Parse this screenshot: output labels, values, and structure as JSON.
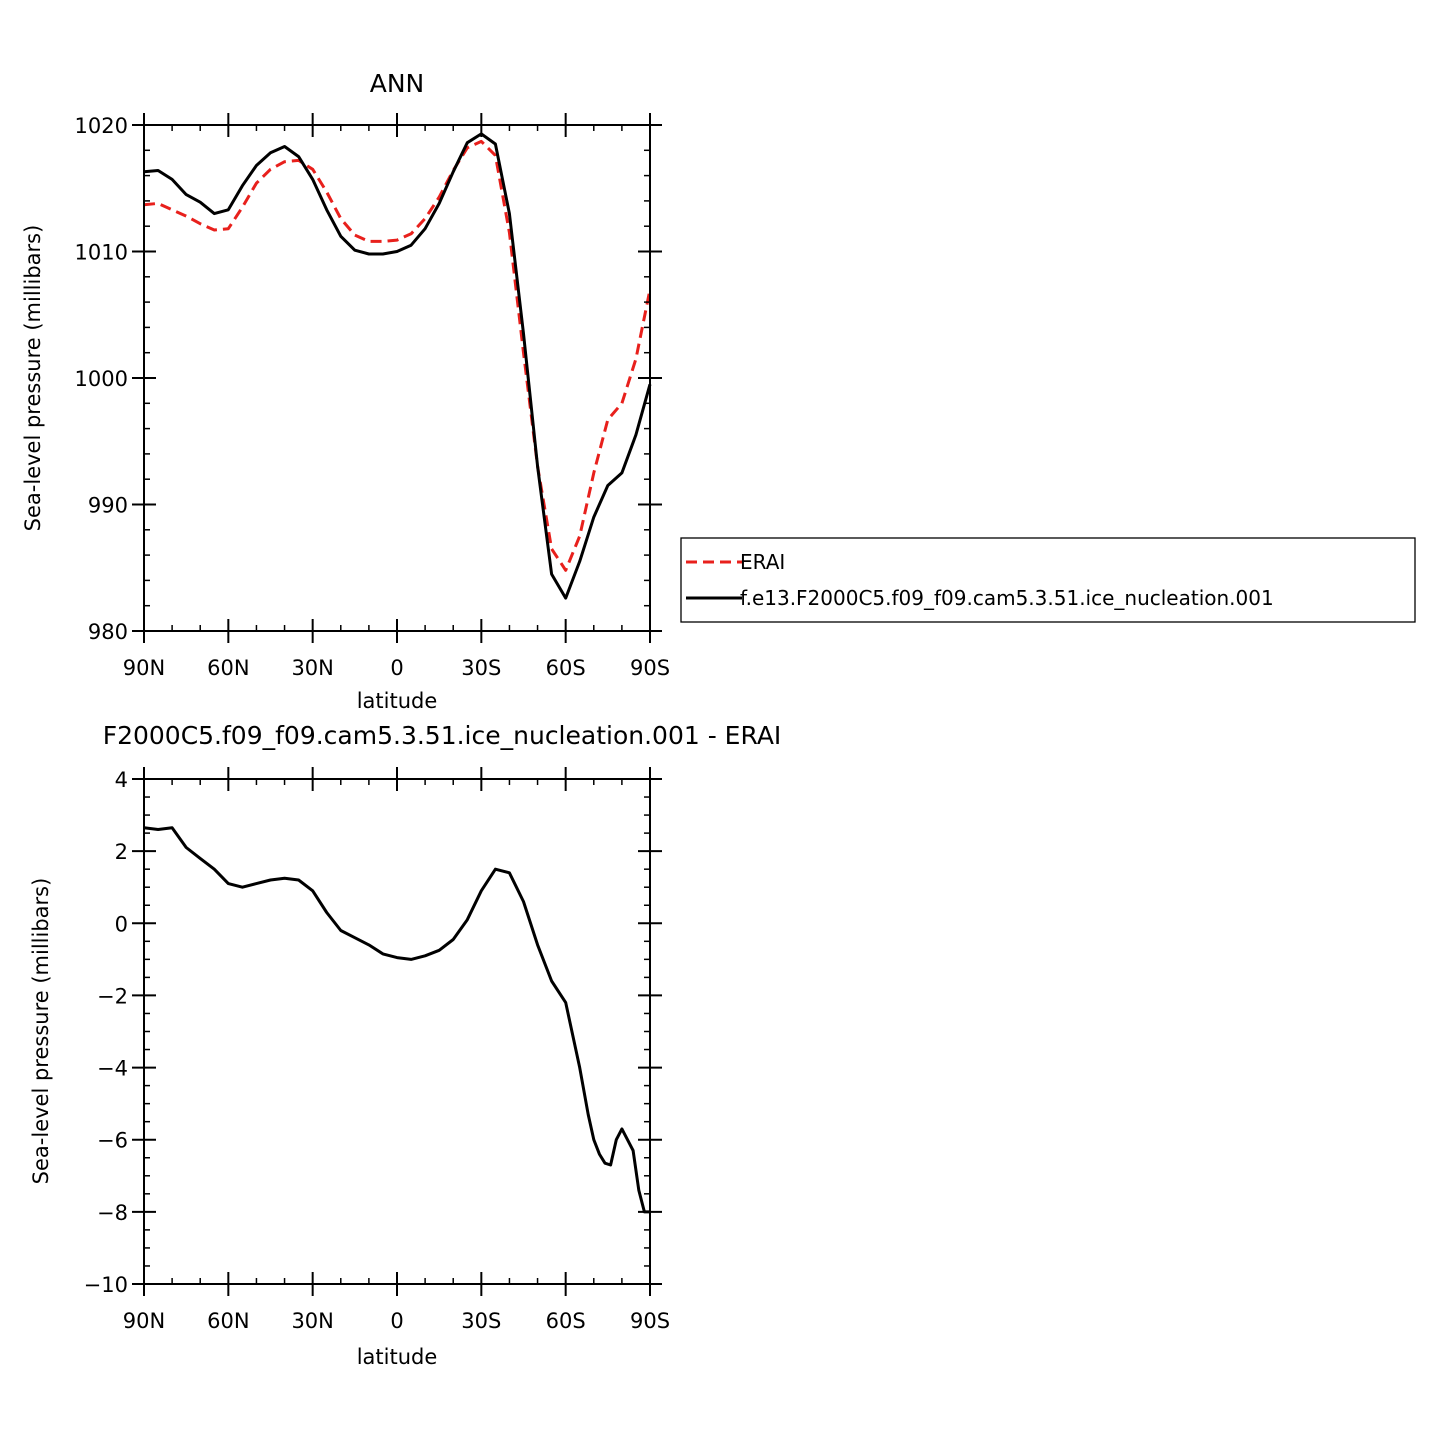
{
  "chart_data": [
    {
      "type": "line",
      "title": "ANN",
      "xlabel": "latitude",
      "ylabel": "Sea-level pressure (millibars)",
      "xlim": [
        90,
        -90
      ],
      "ylim": [
        980,
        1020
      ],
      "xticks": [
        90,
        60,
        30,
        0,
        -30,
        -60,
        -90
      ],
      "xtick_labels": [
        "90N",
        "60N",
        "30N",
        "0",
        "30S",
        "60S",
        "90S"
      ],
      "yticks": [
        980,
        990,
        1000,
        1010,
        1020
      ],
      "ytick_labels": [
        "980",
        "990",
        "1000",
        "1010",
        "1020"
      ],
      "legend_position": "right",
      "series": [
        {
          "name": "ERAI",
          "color": "#e8201c",
          "dash": "dashed",
          "x": [
            90,
            85,
            80,
            75,
            70,
            65,
            60,
            55,
            50,
            45,
            40,
            35,
            30,
            25,
            20,
            15,
            10,
            5,
            0,
            -5,
            -10,
            -15,
            -20,
            -25,
            -30,
            -35,
            -40,
            -45,
            -50,
            -55,
            -60,
            -65,
            -70,
            -75,
            -80,
            -85,
            -90
          ],
          "y": [
            1013.7,
            1013.8,
            1013.3,
            1012.8,
            1012.2,
            1011.7,
            1011.8,
            1013.5,
            1015.4,
            1016.5,
            1017.1,
            1017.2,
            1016.5,
            1014.7,
            1012.6,
            1011.3,
            1010.8,
            1010.8,
            1010.9,
            1011.4,
            1012.6,
            1014.3,
            1016.4,
            1018.2,
            1018.7,
            1017.6,
            1011.5,
            1002.0,
            993.0,
            986.5,
            984.8,
            987.5,
            992.5,
            996.7,
            998.0,
            1001.5,
            1007.0
          ]
        },
        {
          "name": "f.e13.F2000C5.f09_f09.cam5.3.51.ice_nucleation.001",
          "color": "#000000",
          "dash": "solid",
          "x": [
            90,
            85,
            80,
            75,
            70,
            65,
            60,
            55,
            50,
            45,
            40,
            35,
            30,
            25,
            20,
            15,
            10,
            5,
            0,
            -5,
            -10,
            -15,
            -20,
            -25,
            -30,
            -35,
            -40,
            -45,
            -50,
            -55,
            -60,
            -65,
            -70,
            -75,
            -80,
            -85,
            -90
          ],
          "y": [
            1016.3,
            1016.4,
            1015.7,
            1014.5,
            1013.9,
            1013.0,
            1013.3,
            1015.2,
            1016.8,
            1017.8,
            1018.3,
            1017.5,
            1015.7,
            1013.3,
            1011.2,
            1010.1,
            1009.8,
            1009.8,
            1010.0,
            1010.5,
            1011.8,
            1013.8,
            1016.3,
            1018.6,
            1019.3,
            1018.5,
            1013.0,
            1003.5,
            993.0,
            984.5,
            982.6,
            985.5,
            989.0,
            991.5,
            992.5,
            995.5,
            999.5
          ]
        }
      ]
    },
    {
      "type": "line",
      "title": "F2000C5.f09_f09.cam5.3.51.ice_nucleation.001 - ERAI",
      "xlabel": "latitude",
      "ylabel": "Sea-level pressure (millibars)",
      "xlim": [
        90,
        -90
      ],
      "ylim": [
        -10,
        4
      ],
      "xticks": [
        90,
        60,
        30,
        0,
        -30,
        -60,
        -90
      ],
      "xtick_labels": [
        "90N",
        "60N",
        "30N",
        "0",
        "30S",
        "60S",
        "90S"
      ],
      "yticks": [
        -10,
        -8,
        -6,
        -4,
        -2,
        0,
        2,
        4
      ],
      "ytick_labels": [
        "-10",
        "-8",
        "-6",
        "-4",
        "-2",
        "0",
        "2",
        "4"
      ],
      "series": [
        {
          "color": "#000000",
          "dash": "solid",
          "x": [
            90,
            85,
            80,
            75,
            70,
            65,
            60,
            55,
            50,
            45,
            40,
            35,
            30,
            25,
            20,
            15,
            10,
            5,
            0,
            -5,
            -10,
            -15,
            -20,
            -25,
            -30,
            -35,
            -40,
            -45,
            -50,
            -55,
            -60,
            -65,
            -68,
            -70,
            -72,
            -74,
            -76,
            -78,
            -80,
            -82,
            -84,
            -86,
            -88,
            -90
          ],
          "y": [
            2.65,
            2.6,
            2.65,
            2.1,
            1.8,
            1.5,
            1.1,
            1.0,
            1.1,
            1.2,
            1.25,
            1.2,
            0.9,
            0.3,
            -0.2,
            -0.4,
            -0.6,
            -0.85,
            -0.95,
            -1.0,
            -0.9,
            -0.75,
            -0.45,
            0.1,
            0.9,
            1.5,
            1.4,
            0.6,
            -0.6,
            -1.6,
            -2.2,
            -4.0,
            -5.3,
            -6.0,
            -6.4,
            -6.65,
            -6.7,
            -6.0,
            -5.7,
            -6.0,
            -6.3,
            -7.4,
            -8.0,
            -8.0
          ]
        }
      ]
    }
  ]
}
